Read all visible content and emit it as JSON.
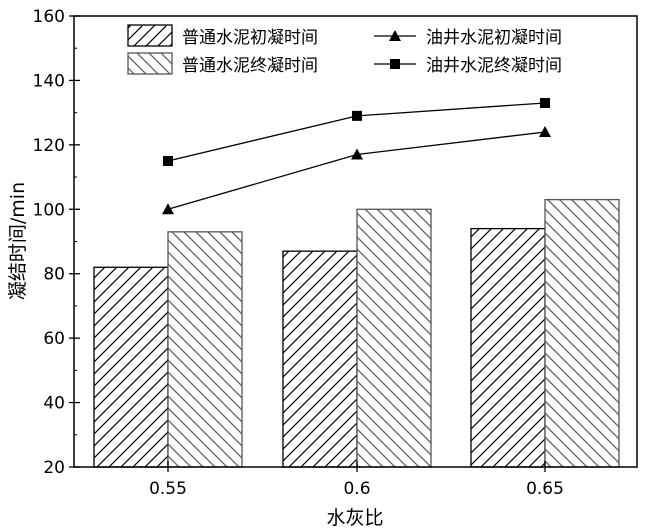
{
  "chart_data": {
    "type": "bar",
    "xlabel": "水灰比",
    "ylabel": "凝结时间/min",
    "ylim": [
      20,
      160
    ],
    "yticks": [
      "20",
      "40",
      "60",
      "80",
      "100",
      "120",
      "140",
      "160"
    ],
    "categories": [
      "0.55",
      "0.6",
      "0.65"
    ],
    "bar_series": [
      {
        "name": "普通水泥初凝时间",
        "values": [
          82,
          87,
          94
        ],
        "hatch": "forward-diagonal"
      },
      {
        "name": "普通水泥终凝时间",
        "values": [
          93,
          100,
          103
        ],
        "hatch": "backward-diagonal"
      }
    ],
    "line_series": [
      {
        "name": "油井水泥初凝时间",
        "values": [
          100,
          117,
          124
        ],
        "marker": "triangle"
      },
      {
        "name": "油井水泥终凝时间",
        "values": [
          115,
          129,
          133
        ],
        "marker": "square"
      }
    ],
    "legend_position": "top",
    "grid": false
  }
}
